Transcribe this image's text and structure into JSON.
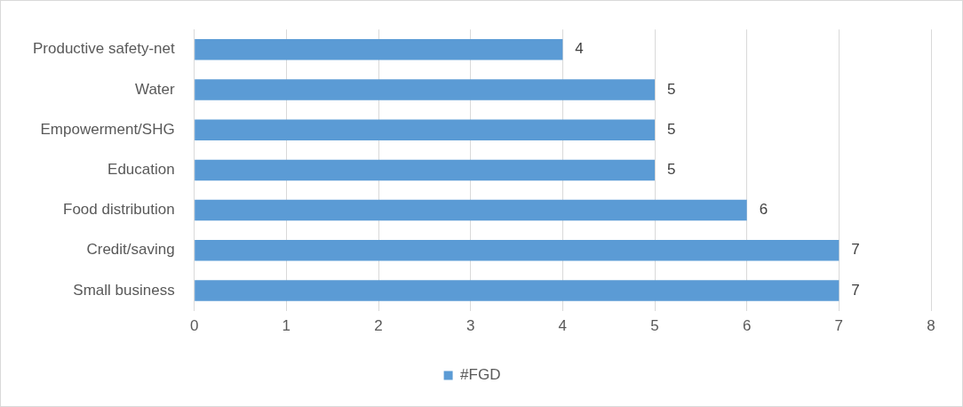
{
  "chart_data": {
    "type": "bar",
    "orientation": "horizontal",
    "categories": [
      "Productive safety-net",
      "Water",
      "Empowerment/SHG",
      "Education",
      "Food distribution",
      "Credit/saving",
      "Small business"
    ],
    "series": [
      {
        "name": "#FGD",
        "color": "#5b9bd5",
        "values": [
          4,
          5,
          5,
          5,
          6,
          7,
          7
        ]
      }
    ],
    "xlim": [
      0,
      8
    ],
    "xticks": [
      0,
      1,
      2,
      3,
      4,
      5,
      6,
      7,
      8
    ],
    "grid": "x",
    "legend": "bottom",
    "data_labels": true
  }
}
